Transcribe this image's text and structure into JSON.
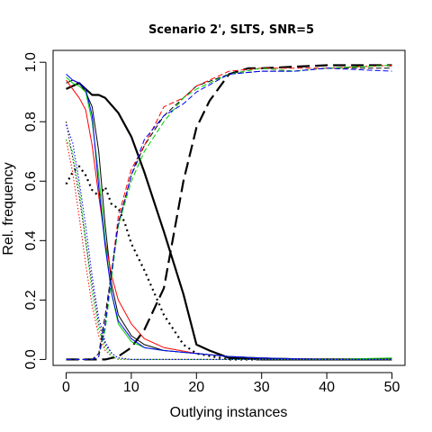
{
  "chart_data": {
    "type": "line",
    "title": "Scenario 2', SLTS, SNR=5",
    "xlabel": "Outlying instances",
    "ylabel": "Rel. frequency",
    "xlim": [
      -2,
      52
    ],
    "ylim": [
      -0.02,
      1.04
    ],
    "xticks": [
      0,
      10,
      20,
      30,
      40,
      50
    ],
    "yticks": [
      0.0,
      0.2,
      0.4,
      0.6,
      0.8,
      1.0
    ],
    "xtick_labels": [
      "0",
      "10",
      "20",
      "30",
      "40",
      "50"
    ],
    "ytick_labels": [
      "0.0",
      "0.2",
      "0.4",
      "0.6",
      "0.8",
      "1.0"
    ],
    "grid": false,
    "legend": "none",
    "series": [
      {
        "color": "#000000",
        "dash": "solid",
        "width": 2.2,
        "x": [
          0,
          2,
          4,
          5,
          6,
          8,
          10,
          12,
          15,
          18,
          20,
          22,
          25,
          30,
          40,
          50
        ],
        "y": [
          0.91,
          0.93,
          0.89,
          0.89,
          0.88,
          0.83,
          0.75,
          0.63,
          0.43,
          0.22,
          0.05,
          0.03,
          0.005,
          0.0,
          0.0,
          0.0
        ]
      },
      {
        "color": "#000000",
        "dash": "dashed",
        "width": 2.2,
        "x": [
          0,
          2,
          4,
          6,
          8,
          10,
          12,
          15,
          18,
          20,
          22,
          25,
          28,
          30,
          40,
          50
        ],
        "y": [
          0.0,
          0.0,
          0.0,
          0.0,
          0.01,
          0.04,
          0.1,
          0.24,
          0.6,
          0.78,
          0.87,
          0.96,
          0.98,
          0.98,
          0.99,
          0.99
        ]
      },
      {
        "color": "#000000",
        "dash": "dotted",
        "width": 2.2,
        "x": [
          0,
          1,
          2,
          3,
          4,
          5,
          6,
          7,
          8,
          9,
          10,
          12,
          15,
          18,
          20,
          25,
          30,
          50
        ],
        "y": [
          0.59,
          0.63,
          0.65,
          0.62,
          0.57,
          0.55,
          0.58,
          0.52,
          0.51,
          0.46,
          0.39,
          0.3,
          0.15,
          0.05,
          0.02,
          0.0,
          0.0,
          0.0
        ]
      },
      {
        "color": "#000000",
        "dash": "solid",
        "width": 1,
        "x": [
          0,
          1,
          2,
          3,
          4,
          5,
          6,
          7,
          8,
          10,
          12,
          15,
          20,
          25,
          30,
          40,
          50
        ],
        "y": [
          0.93,
          0.94,
          0.93,
          0.9,
          0.85,
          0.7,
          0.45,
          0.25,
          0.15,
          0.08,
          0.05,
          0.03,
          0.02,
          0.01,
          0.005,
          0.0,
          0.0
        ]
      },
      {
        "color": "#ff0000",
        "dash": "solid",
        "width": 1,
        "x": [
          0,
          1,
          2,
          3,
          4,
          5,
          6,
          7,
          8,
          10,
          12,
          15,
          20,
          25,
          30,
          40,
          50
        ],
        "y": [
          0.94,
          0.91,
          0.88,
          0.84,
          0.72,
          0.55,
          0.4,
          0.28,
          0.2,
          0.12,
          0.07,
          0.04,
          0.02,
          0.01,
          0.005,
          0.0,
          0.0
        ]
      },
      {
        "color": "#00cc00",
        "dash": "solid",
        "width": 1,
        "x": [
          0,
          1,
          2,
          3,
          4,
          5,
          6,
          7,
          8,
          10,
          12,
          15,
          20,
          25,
          30,
          40,
          50
        ],
        "y": [
          0.95,
          0.93,
          0.92,
          0.9,
          0.8,
          0.62,
          0.4,
          0.22,
          0.12,
          0.06,
          0.04,
          0.03,
          0.02,
          0.01,
          0.005,
          0.0,
          0.005
        ]
      },
      {
        "color": "#0000ff",
        "dash": "solid",
        "width": 1,
        "x": [
          0,
          1,
          2,
          3,
          4,
          5,
          6,
          7,
          8,
          10,
          12,
          15,
          20,
          25,
          30,
          40,
          50
        ],
        "y": [
          0.96,
          0.94,
          0.93,
          0.91,
          0.82,
          0.58,
          0.38,
          0.22,
          0.13,
          0.07,
          0.04,
          0.03,
          0.02,
          0.01,
          0.005,
          0.0,
          0.0
        ]
      },
      {
        "color": "#000000",
        "dash": "dashed",
        "width": 1,
        "x": [
          0,
          2,
          4,
          5,
          6,
          7,
          8,
          10,
          12,
          15,
          18,
          20,
          25,
          30,
          35,
          40,
          50
        ],
        "y": [
          0.0,
          0.0,
          0.0,
          0.02,
          0.15,
          0.3,
          0.45,
          0.62,
          0.72,
          0.82,
          0.88,
          0.92,
          0.96,
          0.97,
          0.97,
          0.98,
          0.98
        ]
      },
      {
        "color": "#ff0000",
        "dash": "dashed",
        "width": 1,
        "x": [
          0,
          2,
          4,
          5,
          6,
          7,
          8,
          10,
          12,
          15,
          18,
          20,
          25,
          30,
          35,
          40,
          50
        ],
        "y": [
          0.0,
          0.0,
          0.0,
          0.01,
          0.12,
          0.3,
          0.48,
          0.64,
          0.72,
          0.85,
          0.88,
          0.92,
          0.97,
          0.98,
          0.98,
          0.98,
          0.99
        ]
      },
      {
        "color": "#00cc00",
        "dash": "dashed",
        "width": 1,
        "x": [
          0,
          2,
          4,
          5,
          6,
          7,
          8,
          10,
          12,
          15,
          18,
          20,
          25,
          30,
          35,
          40,
          50
        ],
        "y": [
          0.0,
          0.0,
          0.0,
          0.01,
          0.1,
          0.28,
          0.45,
          0.6,
          0.7,
          0.8,
          0.88,
          0.91,
          0.96,
          0.98,
          0.97,
          0.98,
          0.99
        ]
      },
      {
        "color": "#0000ff",
        "dash": "dashed",
        "width": 1,
        "x": [
          0,
          2,
          4,
          5,
          6,
          7,
          8,
          10,
          12,
          15,
          18,
          20,
          25,
          30,
          35,
          40,
          50
        ],
        "y": [
          0.0,
          0.0,
          0.0,
          0.01,
          0.12,
          0.3,
          0.46,
          0.62,
          0.74,
          0.82,
          0.86,
          0.9,
          0.96,
          0.97,
          0.97,
          0.98,
          0.97
        ]
      },
      {
        "color": "#000000",
        "dash": "dotted",
        "width": 1,
        "x": [
          0,
          1,
          2,
          3,
          4,
          5,
          6,
          7,
          8,
          10,
          15,
          50
        ],
        "y": [
          0.8,
          0.68,
          0.55,
          0.4,
          0.25,
          0.12,
          0.05,
          0.02,
          0.005,
          0.0,
          0.0,
          0.0
        ]
      },
      {
        "color": "#ff0000",
        "dash": "dotted",
        "width": 1,
        "x": [
          0,
          1,
          2,
          3,
          4,
          5,
          6,
          7,
          8,
          10,
          15,
          50
        ],
        "y": [
          0.74,
          0.63,
          0.48,
          0.32,
          0.18,
          0.08,
          0.03,
          0.01,
          0.0,
          0.0,
          0.0,
          0.0
        ]
      },
      {
        "color": "#00cc00",
        "dash": "dotted",
        "width": 1,
        "x": [
          0,
          1,
          2,
          3,
          4,
          5,
          6,
          7,
          8,
          10,
          15,
          50
        ],
        "y": [
          0.74,
          0.7,
          0.58,
          0.4,
          0.22,
          0.1,
          0.04,
          0.01,
          0.0,
          0.0,
          0.0,
          0.0
        ]
      },
      {
        "color": "#0000ff",
        "dash": "dotted",
        "width": 1,
        "x": [
          0,
          1,
          2,
          3,
          4,
          5,
          6,
          7,
          8,
          10,
          15,
          50
        ],
        "y": [
          0.79,
          0.73,
          0.6,
          0.45,
          0.28,
          0.14,
          0.06,
          0.02,
          0.005,
          0.0,
          0.0,
          0.0
        ]
      }
    ]
  }
}
